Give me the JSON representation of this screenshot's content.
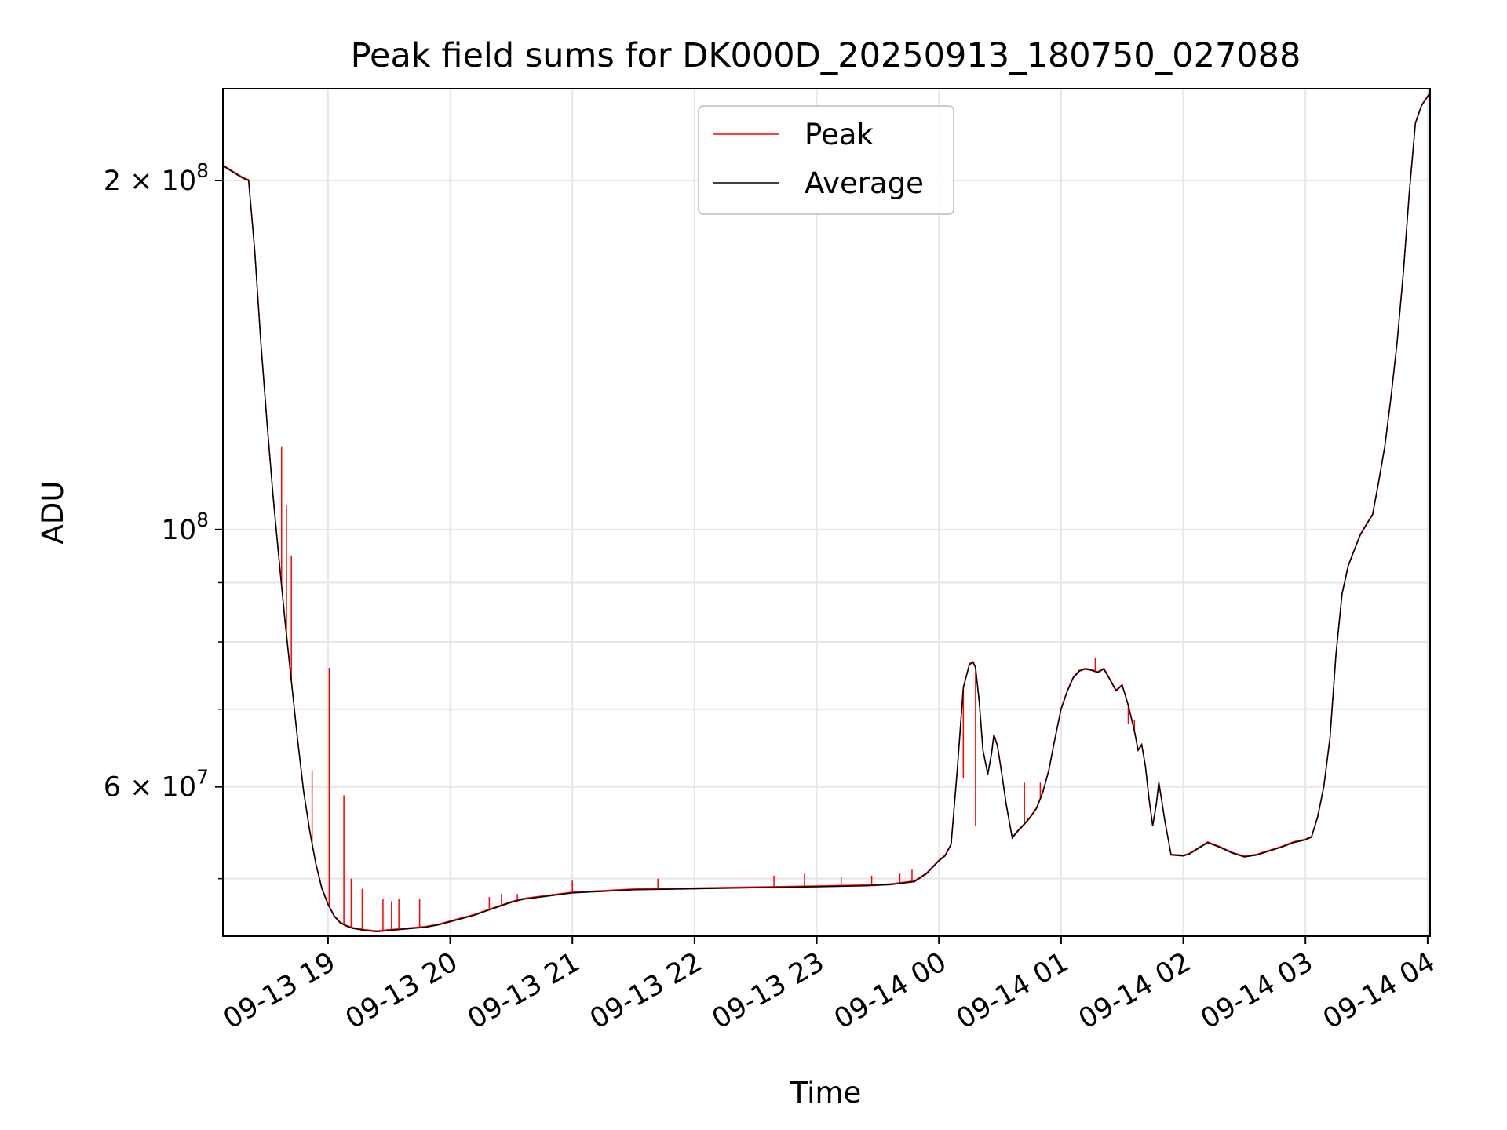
{
  "chart_data": {
    "type": "line",
    "title": "Peak field sums for DK000D_20250913_180750_027088",
    "xlabel": "Time",
    "ylabel": "ADU",
    "y_scale": "log",
    "ylim": [
      44600000,
      240000000
    ],
    "x_unit": "hours since 09-13 18:00",
    "xlim": [
      0.14,
      10.02
    ],
    "grid": true,
    "legend_position": "top-center",
    "x_ticks": [
      {
        "value": 1,
        "label": "09-13 19"
      },
      {
        "value": 2,
        "label": "09-13 20"
      },
      {
        "value": 3,
        "label": "09-13 21"
      },
      {
        "value": 4,
        "label": "09-13 22"
      },
      {
        "value": 5,
        "label": "09-13 23"
      },
      {
        "value": 6,
        "label": "09-14 00"
      },
      {
        "value": 7,
        "label": "09-14 01"
      },
      {
        "value": 8,
        "label": "09-14 02"
      },
      {
        "value": 9,
        "label": "09-14 03"
      },
      {
        "value": 10,
        "label": "09-14 04"
      }
    ],
    "y_ticks_major": [
      {
        "value": 60000000,
        "label": "6 × 10",
        "exp": "7"
      },
      {
        "value": 100000000,
        "label": "10",
        "exp": "8"
      },
      {
        "value": 200000000,
        "label": "2 × 10",
        "exp": "8"
      }
    ],
    "y_ticks_minor": [
      50000000,
      70000000,
      80000000,
      90000000
    ],
    "series": [
      {
        "name": "Peak",
        "color": "#ff0000",
        "spikes": [
          {
            "x": 0.62,
            "y": 118000000
          },
          {
            "x": 0.66,
            "y": 105000000
          },
          {
            "x": 0.7,
            "y": 95000000
          },
          {
            "x": 0.87,
            "y": 62000000
          },
          {
            "x": 1.01,
            "y": 76000000
          },
          {
            "x": 1.13,
            "y": 59000000
          },
          {
            "x": 1.19,
            "y": 50000000
          },
          {
            "x": 1.28,
            "y": 49000000
          },
          {
            "x": 1.45,
            "y": 48000000
          },
          {
            "x": 1.52,
            "y": 47800000
          },
          {
            "x": 1.58,
            "y": 48000000
          },
          {
            "x": 1.75,
            "y": 48000000
          },
          {
            "x": 2.32,
            "y": 48200000
          },
          {
            "x": 2.42,
            "y": 48500000
          },
          {
            "x": 2.55,
            "y": 48500000
          },
          {
            "x": 3.0,
            "y": 49800000
          },
          {
            "x": 3.7,
            "y": 50000000
          },
          {
            "x": 4.65,
            "y": 50300000
          },
          {
            "x": 4.9,
            "y": 50500000
          },
          {
            "x": 5.2,
            "y": 50200000
          },
          {
            "x": 5.45,
            "y": 50300000
          },
          {
            "x": 5.68,
            "y": 50500000
          },
          {
            "x": 5.78,
            "y": 50900000
          },
          {
            "x": 6.2,
            "y": 61000000
          },
          {
            "x": 6.3,
            "y": 55500000
          },
          {
            "x": 6.7,
            "y": 60500000
          },
          {
            "x": 6.83,
            "y": 60500000
          },
          {
            "x": 7.28,
            "y": 77500000
          },
          {
            "x": 7.55,
            "y": 68000000
          },
          {
            "x": 7.6,
            "y": 68500000
          }
        ]
      },
      {
        "name": "Average",
        "color": "#000000",
        "x": [
          0.14,
          0.2,
          0.3,
          0.35,
          0.4,
          0.45,
          0.5,
          0.55,
          0.6,
          0.65,
          0.7,
          0.75,
          0.8,
          0.85,
          0.9,
          0.95,
          1.0,
          1.05,
          1.1,
          1.15,
          1.2,
          1.3,
          1.4,
          1.5,
          1.6,
          1.7,
          1.8,
          1.9,
          2.0,
          2.1,
          2.2,
          2.3,
          2.4,
          2.5,
          2.6,
          2.8,
          3.0,
          3.5,
          4.0,
          4.5,
          5.0,
          5.2,
          5.4,
          5.6,
          5.8,
          5.9,
          6.0,
          6.05,
          6.1,
          6.15,
          6.2,
          6.25,
          6.28,
          6.3,
          6.33,
          6.36,
          6.4,
          6.43,
          6.45,
          6.48,
          6.52,
          6.55,
          6.6,
          6.65,
          6.7,
          6.75,
          6.8,
          6.85,
          6.9,
          6.95,
          7.0,
          7.05,
          7.1,
          7.15,
          7.2,
          7.25,
          7.3,
          7.35,
          7.4,
          7.45,
          7.5,
          7.55,
          7.6,
          7.63,
          7.66,
          7.69,
          7.72,
          7.75,
          7.78,
          7.8,
          7.85,
          7.9,
          8.0,
          8.05,
          8.1,
          8.2,
          8.3,
          8.4,
          8.5,
          8.6,
          8.7,
          8.8,
          8.9,
          9.0,
          9.05,
          9.1,
          9.15,
          9.2,
          9.25,
          9.3,
          9.35,
          9.4,
          9.45,
          9.5,
          9.55,
          9.6,
          9.65,
          9.7,
          9.75,
          9.8,
          9.85,
          9.9,
          9.95,
          10.02
        ],
        "y": [
          206000000,
          204000000,
          201000000,
          200000000,
          174000000,
          145000000,
          124000000,
          107000000,
          94000000,
          83000000,
          74000000,
          66000000,
          59500000,
          55000000,
          51500000,
          49000000,
          47500000,
          46400000,
          45800000,
          45500000,
          45300000,
          45100000,
          45000000,
          45100000,
          45200000,
          45300000,
          45400000,
          45600000,
          45900000,
          46200000,
          46500000,
          46900000,
          47300000,
          47700000,
          48000000,
          48300000,
          48600000,
          48900000,
          49000000,
          49100000,
          49200000,
          49250000,
          49300000,
          49400000,
          49700000,
          50500000,
          51800000,
          52300000,
          53500000,
          62000000,
          73000000,
          76500000,
          76800000,
          76000000,
          71000000,
          64500000,
          61500000,
          64000000,
          66500000,
          65000000,
          61000000,
          58000000,
          54200000,
          55000000,
          55700000,
          56500000,
          57500000,
          59300000,
          62000000,
          66000000,
          70000000,
          72500000,
          74500000,
          75500000,
          75800000,
          75600000,
          75300000,
          75800000,
          74200000,
          72600000,
          73400000,
          70500000,
          67000000,
          64500000,
          65200000,
          62500000,
          58500000,
          55500000,
          58000000,
          60500000,
          56000000,
          52400000,
          52300000,
          52500000,
          52900000,
          53700000,
          53200000,
          52600000,
          52200000,
          52400000,
          52800000,
          53200000,
          53700000,
          54000000,
          54300000,
          56500000,
          60000000,
          66000000,
          78000000,
          88000000,
          93000000,
          96000000,
          99000000,
          101000000,
          103000000,
          110000000,
          118000000,
          130000000,
          145000000,
          166000000,
          195000000,
          224000000,
          232000000,
          238000000
        ]
      }
    ]
  }
}
